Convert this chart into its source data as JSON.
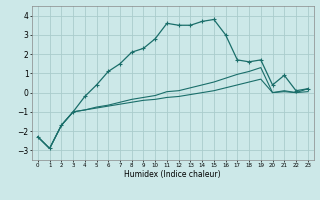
{
  "xlabel": "Humidex (Indice chaleur)",
  "ylabel": "",
  "background_color": "#cce8e8",
  "grid_color": "#aacccc",
  "line_color": "#1a6e6a",
  "xlim": [
    -0.5,
    23.5
  ],
  "ylim": [
    -3.5,
    4.5
  ],
  "yticks": [
    -3,
    -2,
    -1,
    0,
    1,
    2,
    3,
    4
  ],
  "xticks": [
    0,
    1,
    2,
    3,
    4,
    5,
    6,
    7,
    8,
    9,
    10,
    11,
    12,
    13,
    14,
    15,
    16,
    17,
    18,
    19,
    20,
    21,
    22,
    23
  ],
  "x": [
    0,
    1,
    2,
    3,
    4,
    5,
    6,
    7,
    8,
    9,
    10,
    11,
    12,
    13,
    14,
    15,
    16,
    17,
    18,
    19,
    20,
    21,
    22,
    23
  ],
  "line1": [
    -2.3,
    -2.9,
    -1.7,
    -1.0,
    -0.2,
    0.4,
    1.1,
    1.5,
    2.1,
    2.3,
    2.8,
    3.6,
    3.5,
    3.5,
    3.7,
    3.8,
    3.0,
    1.7,
    1.6,
    1.7,
    0.4,
    0.9,
    0.1,
    0.2
  ],
  "line2": [
    -2.3,
    -2.9,
    -1.7,
    -1.0,
    -0.9,
    -0.8,
    -0.7,
    -0.6,
    -0.5,
    -0.4,
    -0.35,
    -0.25,
    -0.2,
    -0.1,
    0.0,
    0.1,
    0.25,
    0.4,
    0.55,
    0.7,
    0.0,
    0.05,
    0.0,
    0.05
  ],
  "line3": [
    -2.3,
    -2.9,
    -1.7,
    -1.0,
    -0.9,
    -0.75,
    -0.65,
    -0.5,
    -0.35,
    -0.25,
    -0.15,
    0.05,
    0.1,
    0.25,
    0.4,
    0.55,
    0.75,
    0.95,
    1.1,
    1.3,
    0.0,
    0.1,
    0.0,
    0.2
  ]
}
